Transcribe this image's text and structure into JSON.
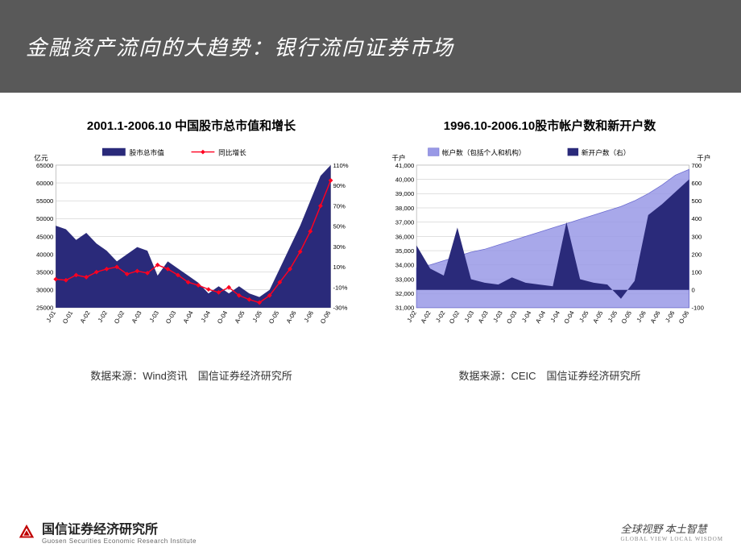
{
  "header": {
    "title": "金融资产流向的大趋势：银行流向证券市场"
  },
  "chart_left": {
    "title": "2001.1-2006.10 中国股市总市值和增长",
    "y1_label": "亿元",
    "legend_area": "股市总市值",
    "legend_line": "同比增长",
    "x_labels": [
      "J-01",
      "O-01",
      "A-02",
      "J-02",
      "O-02",
      "A-03",
      "J-03",
      "O-03",
      "A-04",
      "J-04",
      "O-04",
      "A-05",
      "J-05",
      "O-05",
      "A-06",
      "J-06",
      "O-06"
    ],
    "y1_ticks": [
      25000,
      30000,
      35000,
      40000,
      45000,
      50000,
      55000,
      60000,
      65000
    ],
    "y2_ticks": [
      -30,
      -10,
      10,
      30,
      50,
      70,
      90,
      110
    ],
    "y2_suffix": "%",
    "y1_min": 25000,
    "y1_max": 65000,
    "y2_min": -30,
    "y2_max": 110,
    "area_values": [
      48000,
      47000,
      44000,
      46000,
      43000,
      41000,
      38000,
      40000,
      42000,
      41000,
      34000,
      38000,
      36000,
      34000,
      32000,
      29000,
      31000,
      29000,
      31000,
      29000,
      28000,
      30000,
      36000,
      42000,
      48000,
      55000,
      62000,
      65000
    ],
    "line_values": [
      -2,
      -3,
      2,
      0,
      5,
      8,
      10,
      3,
      6,
      4,
      12,
      8,
      2,
      -5,
      -8,
      -12,
      -15,
      -10,
      -18,
      -22,
      -25,
      -18,
      -5,
      8,
      25,
      45,
      70,
      95
    ],
    "area_color": "#2a2a7a",
    "line_color": "#ff0020",
    "marker_color": "#ff0020",
    "grid_color": "#bfbfbf",
    "bg_color": "#ffffff",
    "tick_fontsize": 8
  },
  "chart_right": {
    "title": "1996.10-2006.10股市帐户数和新开户数",
    "y1_label_left": "千户",
    "y1_label_right": "千户",
    "legend_light": "帐户数（包括个人和机构）",
    "legend_dark": "新开户数（右）",
    "x_labels": [
      "J-02",
      "A-02",
      "J-02",
      "O-02",
      "J-03",
      "A-03",
      "J-03",
      "O-03",
      "J-04",
      "A-04",
      "J-04",
      "O-04",
      "J-05",
      "A-05",
      "J-05",
      "O-05",
      "J-06",
      "A-06",
      "J-06",
      "O-06"
    ],
    "y1_ticks": [
      31000,
      32000,
      33000,
      34000,
      35000,
      36000,
      37000,
      38000,
      39000,
      40000,
      41000
    ],
    "y2_ticks": [
      -100,
      0,
      100,
      200,
      300,
      400,
      500,
      600,
      700
    ],
    "y1_min": 31000,
    "y1_max": 41000,
    "y2_min": -100,
    "y2_max": 700,
    "light_values": [
      33800,
      34000,
      34300,
      34600,
      34900,
      35100,
      35400,
      35700,
      36000,
      36300,
      36600,
      36900,
      37200,
      37500,
      37800,
      38100,
      38500,
      39000,
      39600,
      40300,
      40700
    ],
    "dark_values": [
      250,
      120,
      80,
      350,
      60,
      40,
      30,
      70,
      40,
      30,
      20,
      380,
      60,
      40,
      30,
      -50,
      50,
      420,
      480,
      550,
      620
    ],
    "light_color": "#9999e6",
    "dark_color": "#2a2a7a",
    "grid_color": "#bfbfbf",
    "bg_color": "#ffffff",
    "tick_fontsize": 8
  },
  "sources": {
    "left": "数据来源：Wind资讯　国信证券经济研究所",
    "right": "数据来源：CEIC　国信证券经济研究所"
  },
  "footer": {
    "institution_cn": "国信证券经济研究所",
    "institution_en": "Guosen Securities Economic Research Institute",
    "tagline_cn": "全球视野  本土智慧",
    "tagline_en": "GLOBAL VIEW   LOCAL WISDOM"
  }
}
